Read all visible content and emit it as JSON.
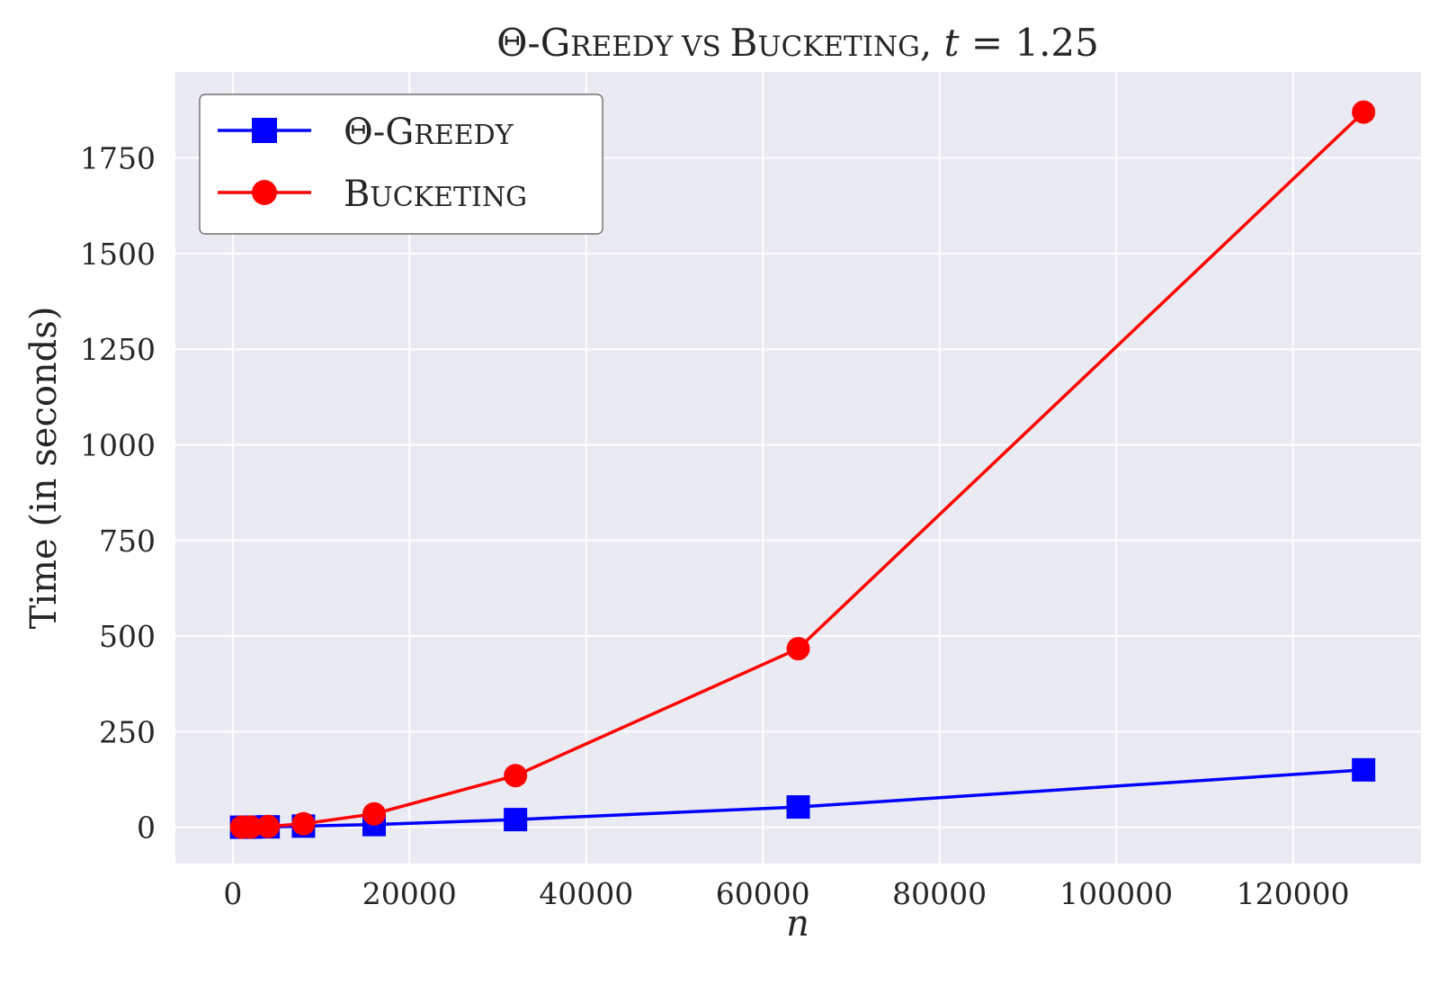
{
  "chart_data": {
    "type": "line",
    "title": {
      "prefix": "Θ-",
      "greedy_big": "G",
      "greedy_small": "REEDY",
      "vs": " VS ",
      "bucket_big": "B",
      "bucket_small": "UCKETING",
      "suffix_text": ", ",
      "t_var": "t",
      "suffix_eq": " = 1.25"
    },
    "xlabel": "n",
    "ylabel": "Time (in seconds)",
    "xlim": [
      -6500,
      134500
    ],
    "ylim": [
      -95,
      1975
    ],
    "xticks": [
      0,
      20000,
      40000,
      60000,
      80000,
      100000,
      120000
    ],
    "xtick_labels": [
      "0",
      "20000",
      "40000",
      "60000",
      "80000",
      "100000",
      "120000"
    ],
    "yticks": [
      0,
      250,
      500,
      750,
      1000,
      1250,
      1500,
      1750
    ],
    "ytick_labels": [
      "0",
      "250",
      "500",
      "750",
      "1000",
      "1250",
      "1500",
      "1750"
    ],
    "grid": true,
    "legend_position": "top-left",
    "background": "#EAEAF2",
    "series": [
      {
        "name": "Θ-GREEDY",
        "legend_parts": {
          "prefix": "Θ-",
          "big": "G",
          "small": "REEDY"
        },
        "color": "#0000FF",
        "marker": "square",
        "x": [
          1000,
          2000,
          4000,
          8000,
          16000,
          32000,
          64000,
          128000
        ],
        "y": [
          0.1,
          0.3,
          1,
          3,
          7,
          20,
          53,
          150
        ]
      },
      {
        "name": "BUCKETING",
        "legend_parts": {
          "prefix": "",
          "big": "B",
          "small": "UCKETING"
        },
        "color": "#FF0000",
        "marker": "circle",
        "x": [
          1000,
          2000,
          4000,
          8000,
          16000,
          32000,
          64000,
          128000
        ],
        "y": [
          0.2,
          0.5,
          2,
          9,
          35,
          135,
          467,
          1870
        ]
      }
    ]
  }
}
